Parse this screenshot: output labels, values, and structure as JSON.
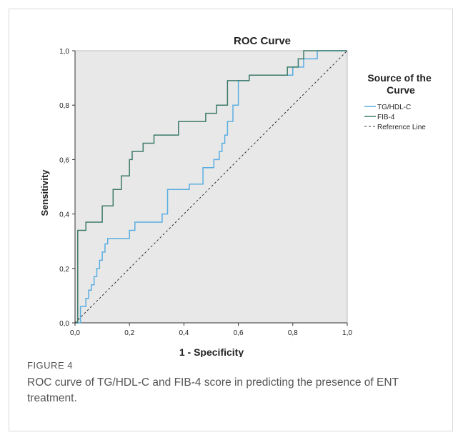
{
  "figure": {
    "label": "FIGURE 4",
    "caption": "ROC curve of TG/HDL-C and FIB-4 score in predicting the presence of ENT treatment."
  },
  "chart_data": {
    "type": "line",
    "title": "ROC Curve",
    "xlabel": "1 - Specificity",
    "ylabel": "Sensitivity",
    "xlim": [
      0,
      1
    ],
    "ylim": [
      0,
      1
    ],
    "x_ticks": [
      "0,0",
      "0,2",
      "0,4",
      "0,6",
      "0,8",
      "1,0"
    ],
    "y_ticks": [
      "0,0",
      "0,2",
      "0,4",
      "0,6",
      "0,8",
      "1,0"
    ],
    "grid": false,
    "legend_title": "Source of the Curve",
    "legend_position": "right",
    "colors": {
      "plot_background": "#e8e8e8",
      "tg": "#5aaee0",
      "fib": "#3d7a6a",
      "reference": "#333333"
    },
    "series": [
      {
        "name": "TG/HDL-C",
        "color": "#5aaee0",
        "points": [
          [
            0,
            0
          ],
          [
            0.02,
            0
          ],
          [
            0.02,
            0.06
          ],
          [
            0.04,
            0.06
          ],
          [
            0.04,
            0.09
          ],
          [
            0.05,
            0.09
          ],
          [
            0.05,
            0.12
          ],
          [
            0.06,
            0.12
          ],
          [
            0.06,
            0.14
          ],
          [
            0.07,
            0.14
          ],
          [
            0.07,
            0.17
          ],
          [
            0.08,
            0.17
          ],
          [
            0.08,
            0.2
          ],
          [
            0.09,
            0.2
          ],
          [
            0.09,
            0.23
          ],
          [
            0.1,
            0.23
          ],
          [
            0.1,
            0.26
          ],
          [
            0.11,
            0.26
          ],
          [
            0.11,
            0.29
          ],
          [
            0.12,
            0.29
          ],
          [
            0.12,
            0.31
          ],
          [
            0.2,
            0.31
          ],
          [
            0.2,
            0.34
          ],
          [
            0.22,
            0.34
          ],
          [
            0.22,
            0.37
          ],
          [
            0.32,
            0.37
          ],
          [
            0.32,
            0.4
          ],
          [
            0.34,
            0.4
          ],
          [
            0.34,
            0.49
          ],
          [
            0.42,
            0.49
          ],
          [
            0.42,
            0.51
          ],
          [
            0.47,
            0.51
          ],
          [
            0.47,
            0.57
          ],
          [
            0.51,
            0.57
          ],
          [
            0.51,
            0.6
          ],
          [
            0.53,
            0.6
          ],
          [
            0.53,
            0.63
          ],
          [
            0.54,
            0.63
          ],
          [
            0.54,
            0.66
          ],
          [
            0.55,
            0.66
          ],
          [
            0.55,
            0.69
          ],
          [
            0.56,
            0.69
          ],
          [
            0.56,
            0.74
          ],
          [
            0.58,
            0.74
          ],
          [
            0.58,
            0.8
          ],
          [
            0.6,
            0.8
          ],
          [
            0.6,
            0.89
          ],
          [
            0.64,
            0.89
          ],
          [
            0.64,
            0.91
          ],
          [
            0.8,
            0.91
          ],
          [
            0.8,
            0.94
          ],
          [
            0.84,
            0.94
          ],
          [
            0.84,
            0.97
          ],
          [
            0.89,
            0.97
          ],
          [
            0.89,
            1.0
          ],
          [
            1.0,
            1.0
          ]
        ]
      },
      {
        "name": "FIB-4",
        "color": "#3d7a6a",
        "points": [
          [
            0,
            0
          ],
          [
            0.01,
            0
          ],
          [
            0.01,
            0.34
          ],
          [
            0.04,
            0.34
          ],
          [
            0.04,
            0.37
          ],
          [
            0.1,
            0.37
          ],
          [
            0.1,
            0.43
          ],
          [
            0.14,
            0.43
          ],
          [
            0.14,
            0.49
          ],
          [
            0.17,
            0.49
          ],
          [
            0.17,
            0.54
          ],
          [
            0.2,
            0.54
          ],
          [
            0.2,
            0.6
          ],
          [
            0.21,
            0.6
          ],
          [
            0.21,
            0.63
          ],
          [
            0.25,
            0.63
          ],
          [
            0.25,
            0.66
          ],
          [
            0.29,
            0.66
          ],
          [
            0.29,
            0.69
          ],
          [
            0.38,
            0.69
          ],
          [
            0.38,
            0.74
          ],
          [
            0.48,
            0.74
          ],
          [
            0.48,
            0.77
          ],
          [
            0.52,
            0.77
          ],
          [
            0.52,
            0.8
          ],
          [
            0.56,
            0.8
          ],
          [
            0.56,
            0.89
          ],
          [
            0.64,
            0.89
          ],
          [
            0.64,
            0.91
          ],
          [
            0.78,
            0.91
          ],
          [
            0.78,
            0.94
          ],
          [
            0.82,
            0.94
          ],
          [
            0.82,
            0.97
          ],
          [
            0.84,
            0.97
          ],
          [
            0.84,
            1.0
          ],
          [
            1.0,
            1.0
          ]
        ]
      },
      {
        "name": "Reference Line",
        "color": "#333333",
        "dashed": true,
        "points": [
          [
            0,
            0
          ],
          [
            1,
            1
          ]
        ]
      }
    ]
  }
}
